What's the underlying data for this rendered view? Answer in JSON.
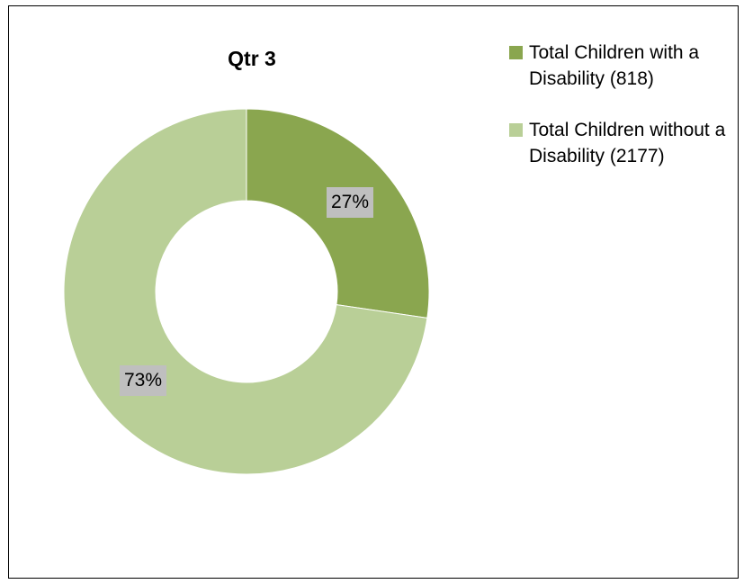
{
  "chart_data": {
    "type": "pie",
    "title": "Qtr 3",
    "donut": true,
    "slices": [
      {
        "label": "Total Children with a Disability (818)",
        "value": 818,
        "percent_label": "27%",
        "color": "#8aa64f"
      },
      {
        "label": "Total Children without a Disability (2177)",
        "value": 2177,
        "percent_label": "73%",
        "color": "#b9cf97"
      }
    ],
    "legend_position": "right"
  }
}
